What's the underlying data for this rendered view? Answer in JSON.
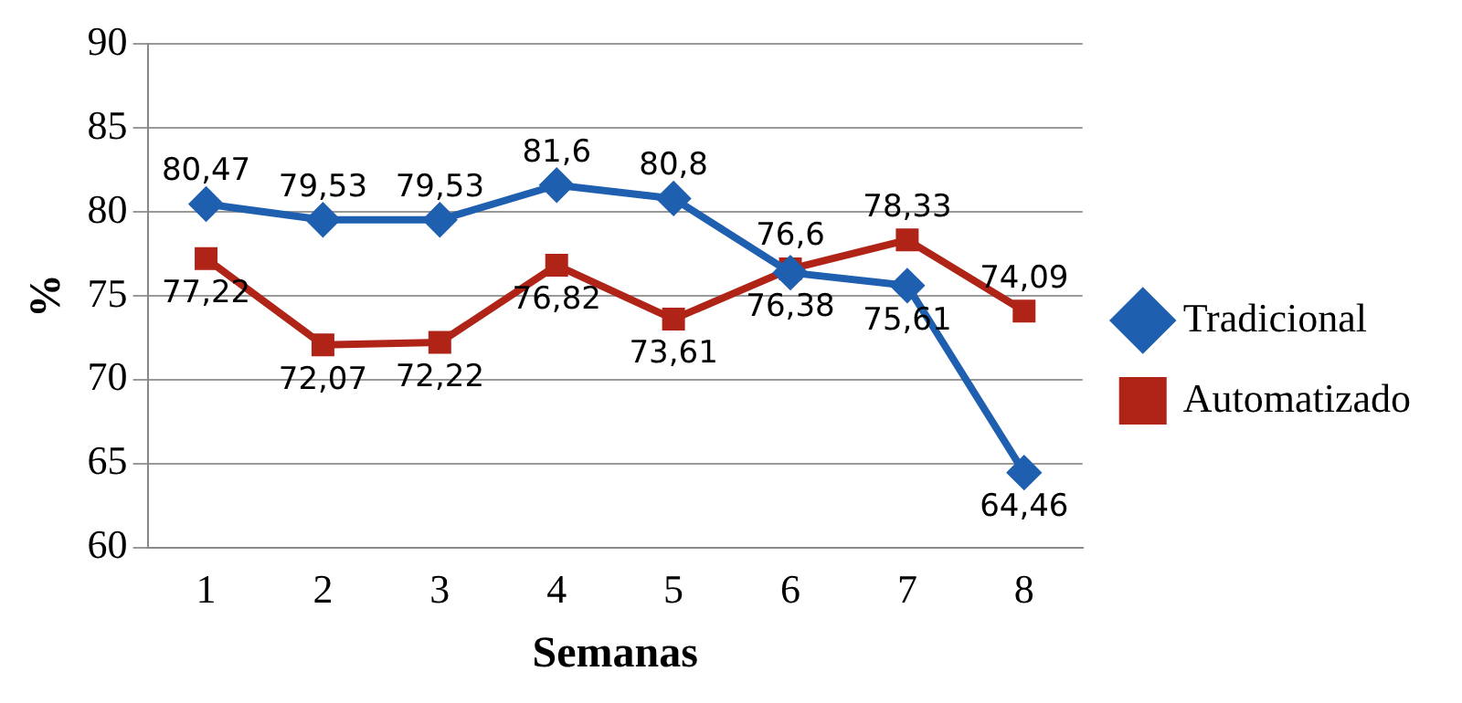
{
  "chart_data": {
    "type": "line",
    "xlabel": "Semanas",
    "ylabel": "%",
    "categories": [
      "1",
      "2",
      "3",
      "4",
      "5",
      "6",
      "7",
      "8"
    ],
    "series": [
      {
        "name": "Tradicional",
        "color": "#1f5fb0",
        "marker": "diamond",
        "values": [
          80.47,
          79.53,
          79.53,
          81.6,
          80.8,
          76.38,
          75.61,
          64.46
        ],
        "value_labels": [
          "80,47",
          "79,53",
          "79,53",
          "81,6",
          "80,8",
          "76,38",
          "75,61",
          "64,46"
        ]
      },
      {
        "name": "Automatizado",
        "color": "#b02418",
        "marker": "square",
        "values": [
          77.22,
          72.07,
          72.22,
          76.82,
          73.61,
          76.6,
          78.33,
          74.09
        ],
        "value_labels": [
          "77,22",
          "72,07",
          "72,22",
          "76,82",
          "73,61",
          "76,6",
          "78,33",
          "74,09"
        ]
      }
    ],
    "ylim": [
      60,
      90
    ],
    "yticks": [
      60,
      65,
      70,
      75,
      80,
      85,
      90
    ],
    "grid": "y",
    "legend": "right"
  }
}
